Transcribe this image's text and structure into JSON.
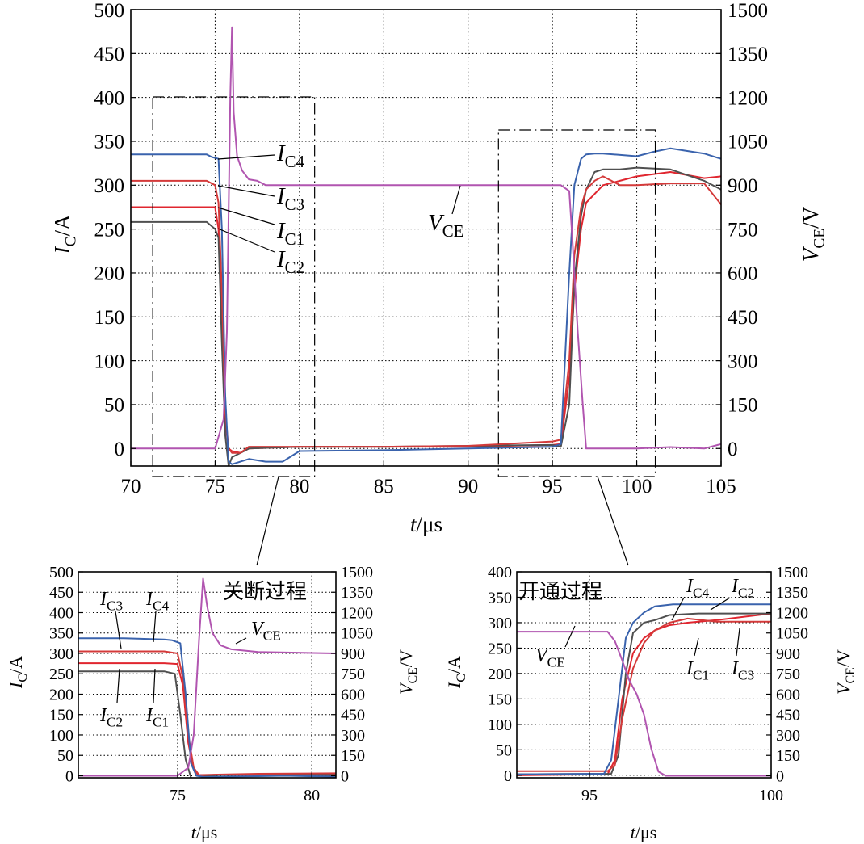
{
  "colors": {
    "IC1": "#e0262f",
    "IC2": "#505050",
    "IC3": "#d43a3a",
    "IC4": "#3a63ad",
    "VCE": "#b155b0",
    "green": "#5aa66e"
  },
  "chart_data": [
    {
      "id": "main",
      "type": "line",
      "xlabel": "t/μs",
      "ylabel_left": "IC/A",
      "ylabel_right": "VCE/V",
      "xlim": [
        70,
        105
      ],
      "ylim_left": [
        -20,
        500
      ],
      "ylim_right": [
        -60,
        1500
      ],
      "xticks": [
        70,
        75,
        80,
        85,
        90,
        95,
        100,
        105
      ],
      "yticks_left": [
        0,
        50,
        100,
        150,
        200,
        250,
        300,
        350,
        400,
        450,
        500
      ],
      "yticks_right": [
        0,
        150,
        300,
        450,
        600,
        750,
        900,
        1050,
        1200,
        1350,
        1500
      ],
      "grid": true,
      "series": [
        {
          "name": "IC4",
          "axis": "left",
          "x": [
            70,
            73,
            74.5,
            74.8,
            75.2,
            75.4,
            75.6,
            75.8,
            76,
            77,
            78,
            79,
            80,
            85,
            90,
            95,
            95.5,
            96,
            96.3,
            96.7,
            97,
            97.5,
            98,
            100,
            101,
            102,
            104,
            105
          ],
          "y": [
            335,
            335,
            335,
            332,
            330,
            250,
            60,
            -15,
            -18,
            -12,
            -15,
            -15,
            -3,
            -2,
            0,
            2,
            5,
            200,
            300,
            330,
            335,
            336,
            336,
            333,
            338,
            342,
            336,
            330
          ]
        },
        {
          "name": "IC3",
          "axis": "left",
          "x": [
            70,
            74.5,
            75,
            75.2,
            75.4,
            75.6,
            75.8,
            76,
            76.5,
            77,
            80,
            85,
            90,
            95,
            95.5,
            96,
            96.3,
            96.7,
            97,
            97.5,
            98,
            99,
            100,
            102,
            104,
            105
          ],
          "y": [
            305,
            305,
            300,
            280,
            180,
            40,
            0,
            -5,
            -5,
            2,
            2,
            2,
            3,
            8,
            10,
            100,
            220,
            275,
            295,
            305,
            310,
            300,
            300,
            302,
            302,
            278
          ]
        },
        {
          "name": "IC1",
          "axis": "left",
          "x": [
            70,
            74.5,
            75,
            75.2,
            75.4,
            75.6,
            75.8,
            76,
            76.5,
            77,
            80,
            85,
            90,
            95,
            95.5,
            96,
            96.3,
            96.7,
            97,
            97.5,
            98,
            99,
            100,
            102,
            104,
            105
          ],
          "y": [
            275,
            275,
            275,
            250,
            150,
            30,
            0,
            -3,
            -5,
            0,
            2,
            2,
            2,
            4,
            5,
            80,
            180,
            250,
            280,
            290,
            300,
            305,
            310,
            315,
            308,
            310
          ]
        },
        {
          "name": "IC2",
          "axis": "left",
          "x": [
            70,
            74.5,
            75,
            75.2,
            75.4,
            75.6,
            75.8,
            76,
            76.5,
            77,
            80,
            85,
            90,
            95,
            95.5,
            96,
            96.3,
            96.7,
            97,
            97.5,
            98,
            99,
            100,
            102,
            104,
            105
          ],
          "y": [
            258,
            258,
            250,
            240,
            120,
            15,
            -20,
            -10,
            -5,
            0,
            2,
            2,
            3,
            4,
            2,
            50,
            190,
            265,
            295,
            315,
            318,
            318,
            320,
            318,
            305,
            295
          ]
        },
        {
          "name": "VCE",
          "axis": "right",
          "x": [
            70,
            74,
            75,
            75.5,
            75.7,
            75.9,
            76,
            76.1,
            76.3,
            76.6,
            77,
            77.5,
            78,
            80,
            85,
            90,
            95,
            95.5,
            96,
            96.2,
            96.5,
            96.8,
            97,
            97.5,
            100,
            102,
            104,
            105
          ],
          "y": [
            0,
            0,
            0,
            100,
            400,
            1200,
            1440,
            1150,
            1000,
            950,
            920,
            915,
            900,
            900,
            900,
            900,
            900,
            900,
            880,
            700,
            400,
            150,
            0,
            0,
            0,
            5,
            0,
            15
          ]
        }
      ],
      "annotations": [
        {
          "text": "IC4"
        },
        {
          "text": "IC3"
        },
        {
          "text": "IC1"
        },
        {
          "text": "IC2"
        },
        {
          "text": "VCE"
        }
      ]
    },
    {
      "id": "inset-turnoff",
      "type": "line",
      "title": "关断过程",
      "xlabel": "t/μs",
      "ylabel_left": "IC/A",
      "ylabel_right": "VCE/V",
      "xlim": [
        71.3,
        80.9
      ],
      "ylim_left": [
        -5,
        500
      ],
      "ylim_right": [
        -15,
        1500
      ],
      "xticks": [
        75,
        80
      ],
      "yticks_left": [
        0,
        50,
        100,
        150,
        200,
        250,
        300,
        350,
        400,
        450,
        500
      ],
      "yticks_right": [
        0,
        150,
        300,
        450,
        600,
        750,
        900,
        1050,
        1200,
        1350,
        1500
      ],
      "grid": true,
      "series": [
        {
          "name": "IC4",
          "axis": "left",
          "x": [
            71.3,
            73,
            74.5,
            74.8,
            75.1,
            75.3,
            75.5,
            75.7,
            76,
            77,
            79,
            80.9
          ],
          "y": [
            337,
            337,
            334,
            332,
            325,
            200,
            30,
            0,
            -3,
            -2,
            0,
            -2
          ]
        },
        {
          "name": "IC3",
          "axis": "left",
          "x": [
            71.3,
            74.5,
            75,
            75.2,
            75.4,
            75.6,
            75.8,
            76.5,
            78,
            80.9
          ],
          "y": [
            305,
            305,
            300,
            240,
            100,
            20,
            2,
            3,
            5,
            6
          ]
        },
        {
          "name": "IC1",
          "axis": "left",
          "x": [
            71.3,
            74.5,
            75,
            75.2,
            75.4,
            75.6,
            75.8,
            76.5,
            78,
            80.9
          ],
          "y": [
            276,
            276,
            274,
            220,
            80,
            15,
            0,
            3,
            2,
            3
          ]
        },
        {
          "name": "IC2",
          "axis": "left",
          "x": [
            71.3,
            74.5,
            74.9,
            75.1,
            75.3,
            75.5,
            75.7,
            76,
            76.5,
            78,
            80.9
          ],
          "y": [
            256,
            256,
            250,
            150,
            40,
            -5,
            -12,
            -2,
            2,
            3,
            2
          ]
        },
        {
          "name": "VCE",
          "axis": "right",
          "x": [
            71.3,
            75,
            75.4,
            75.6,
            75.8,
            75.95,
            76.1,
            76.3,
            76.6,
            77,
            78,
            80.9
          ],
          "y": [
            0,
            0,
            60,
            300,
            1000,
            1450,
            1250,
            1050,
            960,
            930,
            910,
            900
          ]
        }
      ],
      "annotations": [
        {
          "text": "IC3"
        },
        {
          "text": "IC4"
        },
        {
          "text": "IC2"
        },
        {
          "text": "IC1"
        },
        {
          "text": "VCE"
        }
      ]
    },
    {
      "id": "inset-turnon",
      "type": "line",
      "title": "开通过程",
      "xlabel": "t/μs",
      "ylabel_left": "IC/A",
      "ylabel_right": "VCE/V",
      "xlim": [
        93,
        100
      ],
      "ylim_left": [
        -5,
        400
      ],
      "ylim_right": [
        -15,
        1500
      ],
      "xticks": [
        95,
        100
      ],
      "yticks_left": [
        0,
        50,
        100,
        150,
        200,
        250,
        300,
        350,
        400
      ],
      "yticks_right": [
        0,
        150,
        300,
        450,
        600,
        750,
        900,
        1050,
        1200,
        1350,
        1500
      ],
      "grid": true,
      "series": [
        {
          "name": "IC4",
          "axis": "left",
          "x": [
            93,
            95.4,
            95.6,
            95.8,
            96,
            96.2,
            96.5,
            96.8,
            97.3,
            98,
            100
          ],
          "y": [
            2,
            3,
            30,
            150,
            270,
            300,
            320,
            332,
            336,
            336,
            336
          ]
        },
        {
          "name": "IC2",
          "axis": "left",
          "x": [
            93,
            95.6,
            95.8,
            96,
            96.2,
            96.5,
            96.8,
            97.2,
            98,
            100
          ],
          "y": [
            2,
            3,
            40,
            200,
            280,
            300,
            305,
            315,
            318,
            318
          ]
        },
        {
          "name": "IC1",
          "axis": "left",
          "x": [
            93,
            95.5,
            95.7,
            95.9,
            96.2,
            96.5,
            96.8,
            97.2,
            97.7,
            98.5,
            100
          ],
          "y": [
            0,
            2,
            30,
            150,
            240,
            270,
            285,
            295,
            300,
            305,
            318
          ]
        },
        {
          "name": "IC3",
          "axis": "left",
          "x": [
            93,
            95.5,
            95.7,
            95.9,
            96.2,
            96.5,
            96.8,
            97.2,
            97.7,
            98.5,
            100
          ],
          "y": [
            8,
            8,
            20,
            110,
            210,
            260,
            285,
            300,
            308,
            302,
            302
          ]
        },
        {
          "name": "VCE",
          "axis": "right",
          "x": [
            93,
            94.5,
            95.5,
            95.7,
            95.9,
            96.1,
            96.3,
            96.5,
            96.7,
            96.9,
            97.1,
            98,
            100
          ],
          "y": [
            1060,
            1060,
            1060,
            990,
            850,
            700,
            600,
            450,
            200,
            30,
            0,
            0,
            0
          ]
        }
      ],
      "annotations": [
        {
          "text": "VCE"
        },
        {
          "text": "IC4"
        },
        {
          "text": "IC2"
        },
        {
          "text": "IC1"
        },
        {
          "text": "IC3"
        }
      ]
    }
  ]
}
